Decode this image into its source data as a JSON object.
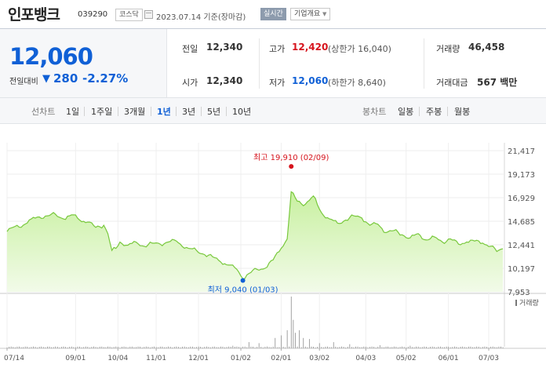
{
  "header": {
    "stock_name": "인포뱅크",
    "stock_code": "039290",
    "market_badge": "코스닥",
    "date_text": "2023.07.14 기준(장마감)",
    "realtime_badge": "실시간",
    "company_overview_label": "기업개요",
    "company_overview_icon": "triangle-down-icon"
  },
  "price": {
    "current": "12,060",
    "change_label": "전일대비",
    "change_direction": "down",
    "change_value": "280",
    "change_percent": "-2.27%"
  },
  "stats": {
    "prev_close_label": "전일",
    "prev_close": "12,340",
    "open_label": "시가",
    "open": "12,340",
    "high_label": "고가",
    "high": "12,420",
    "upper_limit": "(상한가 16,040)",
    "low_label": "저가",
    "low": "12,060",
    "lower_limit": "(하한가 8,640)",
    "volume_label": "거래량",
    "volume": "46,458",
    "trade_value_label": "거래대금",
    "trade_value": "567 백만"
  },
  "period_bar": {
    "line_chart_label": "선차트",
    "line_periods": [
      "1일",
      "1주일",
      "3개월",
      "1년",
      "3년",
      "5년",
      "10년"
    ],
    "active_period": "1년",
    "candle_chart_label": "봉차트",
    "candle_periods": [
      "일봉",
      "주봉",
      "월봉"
    ]
  },
  "colors": {
    "price_down": "#1060d6",
    "price_up": "#d6141d",
    "line": "#78c83c",
    "area_fill": "#c8f0a0"
  },
  "chart_data": {
    "type": "area",
    "ylim": [
      7953,
      21417
    ],
    "y_ticks": [
      "21,417",
      "19,173",
      "16,929",
      "14,685",
      "12,441",
      "10,197",
      "7,953"
    ],
    "y_tick_values": [
      21417,
      19173,
      16929,
      14685,
      12441,
      10197,
      7953
    ],
    "x_labels": [
      "07/14",
      "09/01",
      "10/04",
      "11/01",
      "12/01",
      "01/02",
      "02/01",
      "03/02",
      "04/03",
      "05/02",
      "06/01",
      "07/03"
    ],
    "x_label_index": [
      0,
      34,
      55,
      74,
      95,
      116,
      136,
      155,
      178,
      198,
      219,
      239
    ],
    "n_days": 247,
    "high_annotation": {
      "label": "최고 19,910 (02/09)",
      "index": 141,
      "value": 19910
    },
    "low_annotation": {
      "label": "최저 9,040 (01/03)",
      "index": 117,
      "value": 9040
    },
    "volume_label": "거래량",
    "keypoints": [
      [
        0,
        13700
      ],
      [
        4,
        14200
      ],
      [
        8,
        14300
      ],
      [
        12,
        14900
      ],
      [
        16,
        15100
      ],
      [
        20,
        15200
      ],
      [
        24,
        15350
      ],
      [
        28,
        14900
      ],
      [
        31,
        15200
      ],
      [
        33,
        15300
      ],
      [
        36,
        14800
      ],
      [
        40,
        14600
      ],
      [
        44,
        14100
      ],
      [
        48,
        14300
      ],
      [
        50,
        13500
      ],
      [
        52,
        11900
      ],
      [
        54,
        12100
      ],
      [
        56,
        12700
      ],
      [
        60,
        12400
      ],
      [
        64,
        12700
      ],
      [
        68,
        12300
      ],
      [
        72,
        12600
      ],
      [
        76,
        12500
      ],
      [
        80,
        12700
      ],
      [
        84,
        12800
      ],
      [
        86,
        12500
      ],
      [
        90,
        12100
      ],
      [
        94,
        11900
      ],
      [
        98,
        11500
      ],
      [
        102,
        11300
      ],
      [
        106,
        10800
      ],
      [
        110,
        10500
      ],
      [
        114,
        10100
      ],
      [
        117,
        9200
      ],
      [
        120,
        9700
      ],
      [
        124,
        10100
      ],
      [
        128,
        10200
      ],
      [
        132,
        11000
      ],
      [
        136,
        12100
      ],
      [
        139,
        13000
      ],
      [
        141,
        17500
      ],
      [
        144,
        16600
      ],
      [
        148,
        16300
      ],
      [
        152,
        17100
      ],
      [
        156,
        15500
      ],
      [
        160,
        14900
      ],
      [
        164,
        14500
      ],
      [
        168,
        14800
      ],
      [
        172,
        15200
      ],
      [
        176,
        15000
      ],
      [
        180,
        14300
      ],
      [
        184,
        14400
      ],
      [
        188,
        13600
      ],
      [
        192,
        13800
      ],
      [
        196,
        13400
      ],
      [
        200,
        13100
      ],
      [
        204,
        13500
      ],
      [
        208,
        12900
      ],
      [
        212,
        13200
      ],
      [
        216,
        12700
      ],
      [
        220,
        13000
      ],
      [
        224,
        12500
      ],
      [
        228,
        12700
      ],
      [
        232,
        12800
      ],
      [
        236,
        12600
      ],
      [
        240,
        12300
      ],
      [
        243,
        11800
      ],
      [
        246,
        12060
      ]
    ],
    "volume_spikes": [
      [
        112,
        0.05
      ],
      [
        120,
        0.12
      ],
      [
        125,
        0.1
      ],
      [
        133,
        0.2
      ],
      [
        136,
        0.25
      ],
      [
        139,
        0.35
      ],
      [
        141,
        1.0
      ],
      [
        142,
        0.55
      ],
      [
        143,
        0.3
      ],
      [
        145,
        0.35
      ],
      [
        147,
        0.2
      ],
      [
        150,
        0.18
      ],
      [
        155,
        0.1
      ],
      [
        162,
        0.12
      ],
      [
        170,
        0.08
      ],
      [
        185,
        0.06
      ],
      [
        200,
        0.05
      ]
    ]
  }
}
